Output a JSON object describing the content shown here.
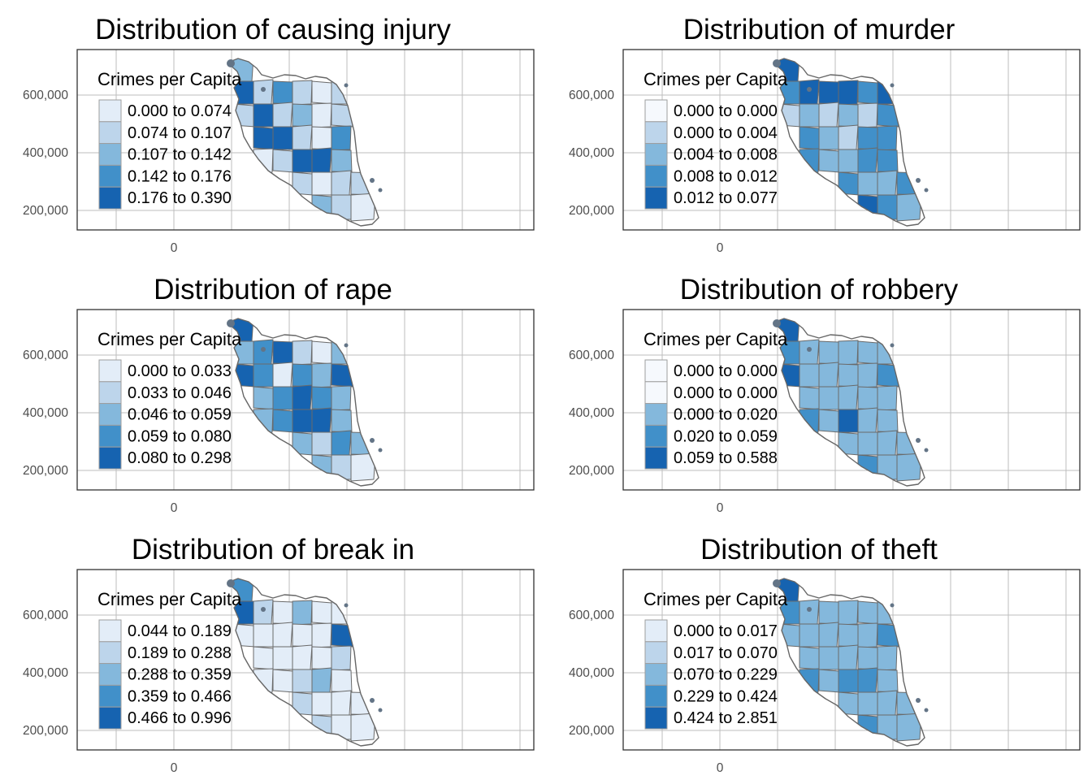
{
  "palette": {
    "classes": [
      "#e3edf8",
      "#bdd5eb",
      "#84b8dc",
      "#4190c9",
      "#1663b0"
    ],
    "white": "#f6f9fd",
    "islands": "#637486",
    "coast": "#666666"
  },
  "y_axis_ticks": [
    "600,000",
    "400,000",
    "200,000"
  ],
  "x_axis_ticks": [
    "0"
  ],
  "legend_title": "Crimes per Capita",
  "panels": [
    {
      "title": "Distribution of causing injury",
      "legend": [
        {
          "label": "0.000 to 0.074",
          "color": "#e3edf8"
        },
        {
          "label": "0.074 to 0.107",
          "color": "#bdd5eb"
        },
        {
          "label": "0.107 to 0.142",
          "color": "#84b8dc"
        },
        {
          "label": "0.142 to 0.176",
          "color": "#4190c9"
        },
        {
          "label": "0.176 to 0.390",
          "color": "#1663b0"
        }
      ],
      "district_classes": [
        2,
        4,
        1,
        3,
        1,
        0,
        1,
        1,
        4,
        1,
        2,
        0,
        1,
        4,
        4,
        1,
        0,
        3,
        0,
        1,
        4,
        4,
        2,
        1,
        0,
        1,
        1,
        2,
        1,
        0,
        0,
        0
      ]
    },
    {
      "title": "Distribution of murder",
      "legend": [
        {
          "label": "0.000 to 0.000",
          "color": "#f6f9fd"
        },
        {
          "label": "0.000 to 0.004",
          "color": "#bdd5eb"
        },
        {
          "label": "0.004 to 0.008",
          "color": "#84b8dc"
        },
        {
          "label": "0.008 to 0.012",
          "color": "#4190c9"
        },
        {
          "label": "0.012 to 0.077",
          "color": "#1663b0"
        }
      ],
      "district_classes": [
        4,
        3,
        4,
        4,
        4,
        3,
        4,
        1,
        2,
        1,
        2,
        1,
        3,
        3,
        2,
        1,
        3,
        3,
        3,
        2,
        2,
        3,
        3,
        3,
        2,
        2,
        3,
        4,
        3,
        2,
        2,
        2
      ]
    },
    {
      "title": "Distribution of rape",
      "legend": [
        {
          "label": "0.000 to 0.033",
          "color": "#e3edf8"
        },
        {
          "label": "0.033 to 0.046",
          "color": "#bdd5eb"
        },
        {
          "label": "0.046 to 0.059",
          "color": "#84b8dc"
        },
        {
          "label": "0.059 to 0.080",
          "color": "#4190c9"
        },
        {
          "label": "0.080 to 0.298",
          "color": "#1663b0"
        }
      ],
      "district_classes": [
        4,
        2,
        3,
        4,
        1,
        0,
        2,
        4,
        3,
        0,
        3,
        2,
        4,
        2,
        3,
        4,
        3,
        2,
        2,
        3,
        4,
        4,
        2,
        2,
        1,
        3,
        2,
        2,
        1,
        0,
        1,
        3
      ]
    },
    {
      "title": "Distribution of robbery",
      "legend": [
        {
          "label": "0.000 to 0.000",
          "color": "#f6f9fd"
        },
        {
          "label": "0.000 to 0.000",
          "color": "#f6f9fd"
        },
        {
          "label": "0.000 to 0.020",
          "color": "#84b8dc"
        },
        {
          "label": "0.020 to 0.059",
          "color": "#4190c9"
        },
        {
          "label": "0.059 to 0.588",
          "color": "#1663b0"
        }
      ],
      "district_classes": [
        4,
        3,
        2,
        2,
        2,
        2,
        2,
        4,
        2,
        2,
        2,
        2,
        3,
        2,
        2,
        2,
        2,
        2,
        3,
        2,
        4,
        2,
        2,
        2,
        2,
        2,
        2,
        3,
        2,
        2,
        2,
        2
      ]
    },
    {
      "title": "Distribution of break in",
      "legend": [
        {
          "label": "0.044 to 0.189",
          "color": "#e3edf8"
        },
        {
          "label": "0.189 to 0.288",
          "color": "#bdd5eb"
        },
        {
          "label": "0.288 to 0.359",
          "color": "#84b8dc"
        },
        {
          "label": "0.359 to 0.466",
          "color": "#4190c9"
        },
        {
          "label": "0.466 to 0.996",
          "color": "#1663b0"
        }
      ],
      "district_classes": [
        3,
        4,
        1,
        0,
        2,
        0,
        0,
        0,
        0,
        0,
        0,
        0,
        4,
        0,
        0,
        0,
        0,
        1,
        0,
        0,
        1,
        2,
        0,
        1,
        0,
        0,
        0,
        1,
        0,
        0,
        0,
        0
      ]
    },
    {
      "title": "Distribution of theft",
      "legend": [
        {
          "label": "0.000 to 0.017",
          "color": "#e3edf8"
        },
        {
          "label": "0.017 to 0.070",
          "color": "#bdd5eb"
        },
        {
          "label": "0.070 to 0.229",
          "color": "#84b8dc"
        },
        {
          "label": "0.229 to 0.424",
          "color": "#4190c9"
        },
        {
          "label": "0.424 to 2.851",
          "color": "#1663b0"
        }
      ],
      "district_classes": [
        4,
        3,
        2,
        2,
        2,
        2,
        2,
        2,
        2,
        2,
        2,
        2,
        3,
        2,
        2,
        2,
        2,
        2,
        3,
        2,
        3,
        3,
        2,
        2,
        2,
        2,
        2,
        3,
        2,
        2,
        2,
        2
      ]
    }
  ]
}
